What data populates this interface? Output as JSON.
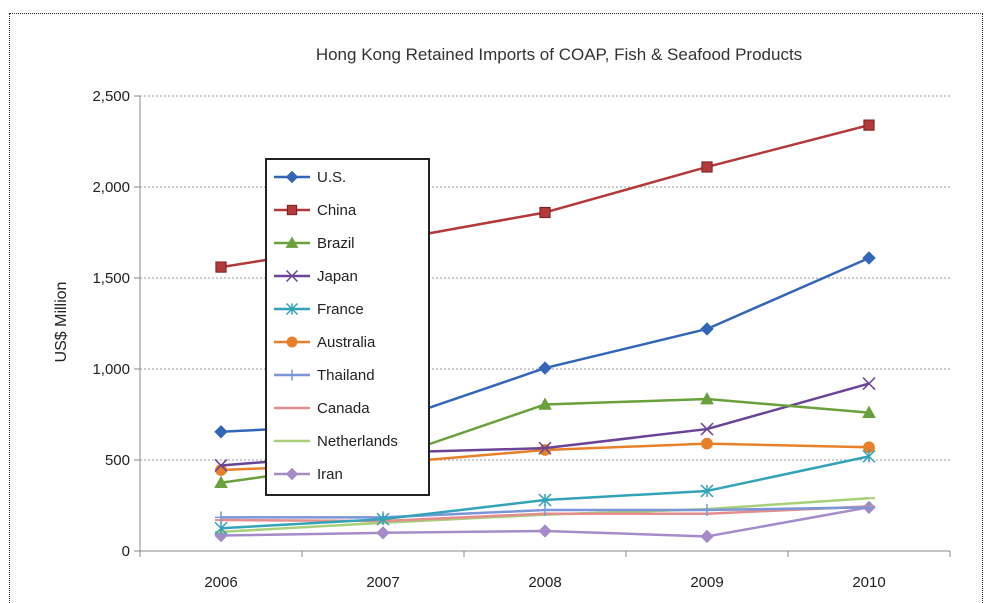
{
  "chart_data": {
    "type": "line",
    "title": "Hong Kong Retained Imports of COAP, Fish & Seafood Products",
    "xlabel": "",
    "ylabel": "US$ Million",
    "categories": [
      "2006",
      "2007",
      "2008",
      "2009",
      "2010"
    ],
    "ylim": [
      0,
      2500
    ],
    "yticks": [
      0,
      500,
      1000,
      1500,
      2000,
      2500
    ],
    "ytick_labels": [
      "0",
      "500",
      "1,000",
      "1,500",
      "2,000",
      "2,500"
    ],
    "grid": true,
    "legend_position": "upper-left inside",
    "series": [
      {
        "name": "U.S.",
        "color": "#3366b8",
        "marker": "diamond",
        "values": [
          655,
          700,
          1005,
          1220,
          1610
        ]
      },
      {
        "name": "China",
        "color": "#b3393b",
        "marker": "square",
        "values": [
          1560,
          1700,
          1860,
          2110,
          2340
        ]
      },
      {
        "name": "Brazil",
        "color": "#6aa13a",
        "marker": "triangle",
        "values": [
          375,
          500,
          805,
          835,
          760
        ]
      },
      {
        "name": "Japan",
        "color": "#6a4496",
        "marker": "x",
        "values": [
          470,
          540,
          565,
          670,
          920
        ]
      },
      {
        "name": "France",
        "color": "#33a3b8",
        "marker": "star",
        "values": [
          125,
          175,
          280,
          330,
          520
        ]
      },
      {
        "name": "Australia",
        "color": "#e8802a",
        "marker": "circle",
        "values": [
          445,
          480,
          555,
          590,
          570
        ]
      },
      {
        "name": "Thailand",
        "color": "#7a95d8",
        "marker": "plus",
        "values": [
          185,
          185,
          225,
          225,
          240
        ]
      },
      {
        "name": "Canada",
        "color": "#e58c8c",
        "marker": "dash",
        "values": [
          170,
          165,
          205,
          205,
          245
        ]
      },
      {
        "name": "Netherlands",
        "color": "#a8cf7a",
        "marker": "dash",
        "values": [
          105,
          155,
          200,
          230,
          290
        ]
      },
      {
        "name": "Iran",
        "color": "#a58cc8",
        "marker": "diamond",
        "values": [
          85,
          100,
          110,
          80,
          240
        ]
      }
    ]
  }
}
